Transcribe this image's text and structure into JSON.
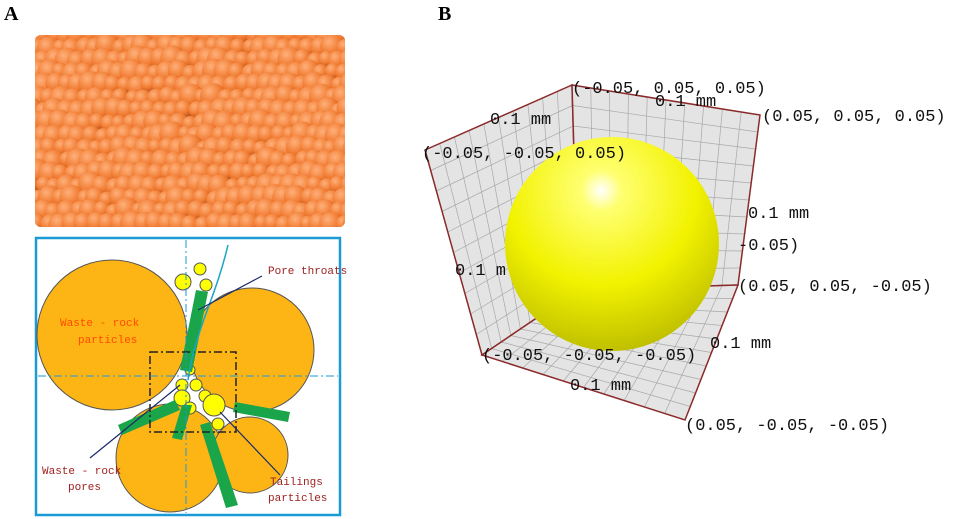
{
  "panel_labels": [
    "A",
    "B"
  ],
  "schematic": {
    "pore_throats": "Pore throats",
    "waste_rock_particles": [
      "Waste - rock",
      "particles"
    ],
    "waste_rock_pores": [
      "Waste - rock",
      "pores"
    ],
    "tailings_particles": [
      "Tailings",
      "particles"
    ]
  },
  "model_3d": {
    "labels": [
      "(-0.05, 0.05, 0.05)",
      "0.1 mm",
      "(0.05, 0.05, 0.05)",
      "0.1 mm",
      "(-0.05, -0.05, 0.05)",
      "0.1 mm",
      "-0.05)",
      "0.1 m",
      "(0.05, 0.05, -0.05)",
      "(-0.05, -0.05, -0.05)",
      "0.1 mm",
      "0.1 mm",
      "(0.05, -0.05, -0.05)"
    ]
  }
}
